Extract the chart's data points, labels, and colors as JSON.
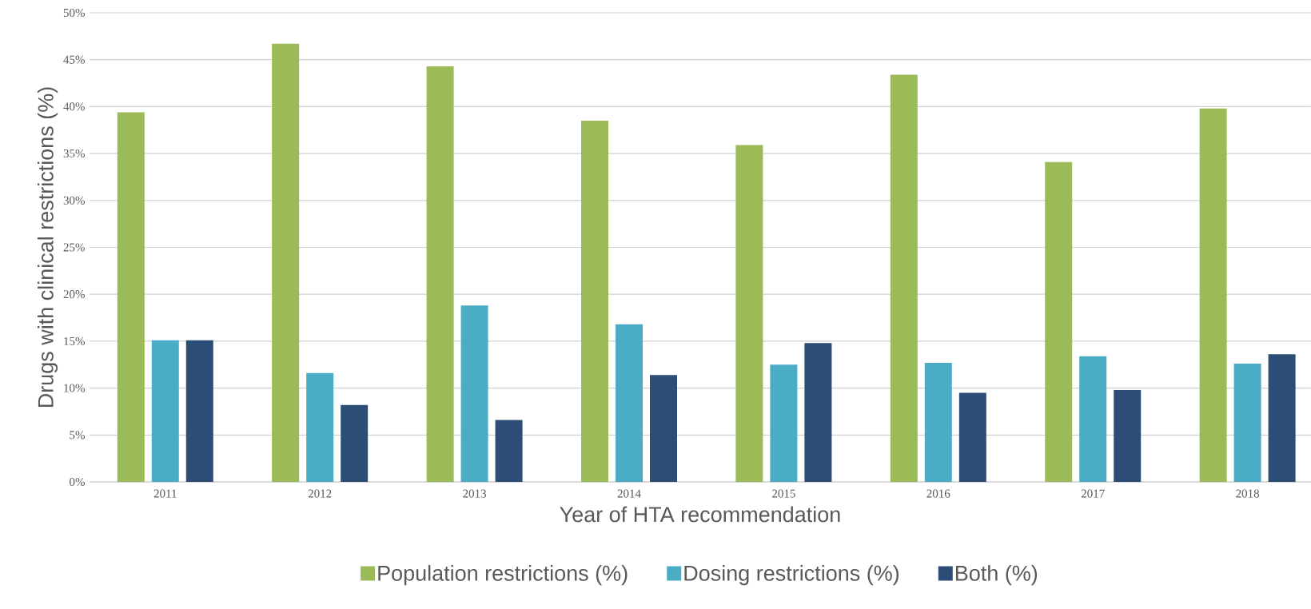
{
  "chart_data": {
    "type": "bar",
    "xlabel": "Year of HTA recommendation",
    "ylabel": "Drugs with clinical restrictions (%)",
    "categories": [
      "2011",
      "2012",
      "2013",
      "2014",
      "2015",
      "2016",
      "2017",
      "2018"
    ],
    "series": [
      {
        "name": "Population restrictions (%)",
        "color": "#9bbb59",
        "values": [
          39.4,
          46.7,
          44.3,
          38.5,
          35.9,
          43.4,
          34.1,
          39.8
        ]
      },
      {
        "name": "Dosing restrictions (%)",
        "color": "#4bacc6",
        "values": [
          15.1,
          11.6,
          18.8,
          16.8,
          12.5,
          12.7,
          13.4,
          12.6
        ]
      },
      {
        "name": "Both (%)",
        "color": "#2c4d75",
        "values": [
          15.1,
          8.2,
          6.6,
          11.4,
          14.8,
          9.5,
          9.8,
          13.6
        ]
      }
    ],
    "ylim": [
      0,
      50
    ],
    "yticks": [
      {
        "value": 0,
        "label": "0%"
      },
      {
        "value": 5,
        "label": "5%"
      },
      {
        "value": 10,
        "label": "10%"
      },
      {
        "value": 15,
        "label": "15%"
      },
      {
        "value": 20,
        "label": "20%"
      },
      {
        "value": 25,
        "label": "25%"
      },
      {
        "value": 30,
        "label": "30%"
      },
      {
        "value": 35,
        "label": "35%"
      },
      {
        "value": 40,
        "label": "40%"
      },
      {
        "value": 45,
        "label": "45%"
      },
      {
        "value": 50,
        "label": "50%"
      }
    ],
    "grid": "y",
    "legend": "bottom"
  }
}
